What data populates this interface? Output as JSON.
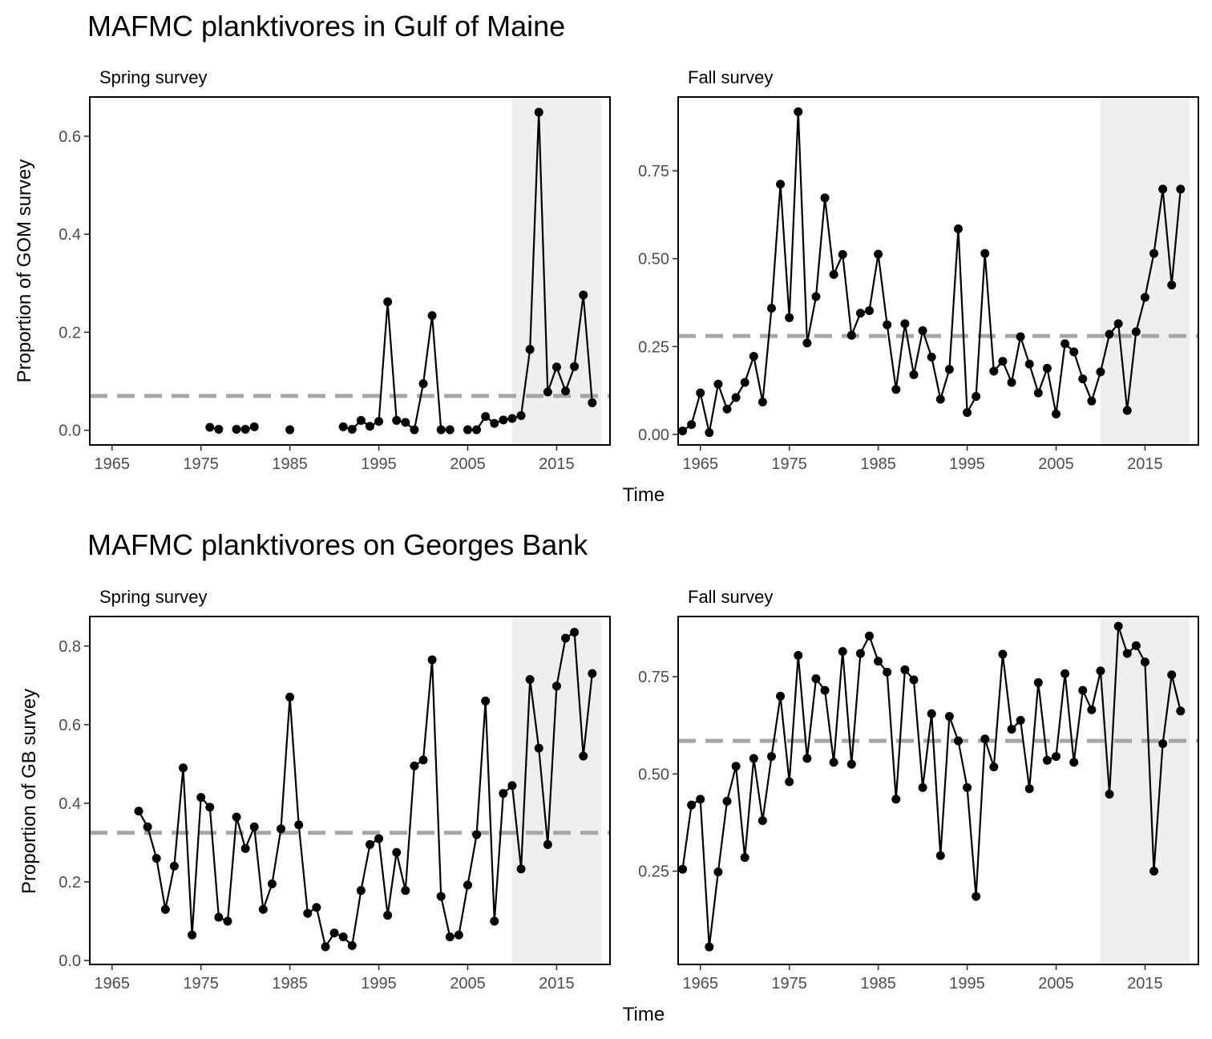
{
  "chart_data": [
    {
      "type": "line",
      "title": "MAFMC planktivores in Gulf of Maine",
      "xlabel": "Time",
      "ylabel": "Proportion of GOM survey",
      "panels": [
        {
          "strip": "Spring survey",
          "xlim": [
            1962.5,
            2021
          ],
          "ylim": [
            -0.03,
            0.68
          ],
          "xticks": [
            1965,
            1975,
            1985,
            1995,
            2005,
            2015
          ],
          "yticks": [
            0.0,
            0.2,
            0.4,
            0.6
          ],
          "ytick_labels": [
            "0.0",
            "0.2",
            "0.4",
            "0.6"
          ],
          "mean": 0.07,
          "shade": [
            2010,
            2020
          ],
          "x": [
            1976,
            1977,
            1979,
            1980,
            1981,
            1985,
            1991,
            1992,
            1993,
            1994,
            1995,
            1996,
            1997,
            1998,
            1999,
            2000,
            2001,
            2002,
            2003,
            2005,
            2006,
            2007,
            2008,
            2009,
            2010,
            2011,
            2012,
            2013,
            2014,
            2015,
            2016,
            2017,
            2018,
            2019
          ],
          "y": [
            0.006,
            0.002,
            0.002,
            0.002,
            0.007,
            0.001,
            0.007,
            0.002,
            0.02,
            0.008,
            0.018,
            0.262,
            0.02,
            0.016,
            0.001,
            0.095,
            0.234,
            0.001,
            0.001,
            0.001,
            0.001,
            0.028,
            0.014,
            0.021,
            0.024,
            0.03,
            0.165,
            0.649,
            0.078,
            0.129,
            0.08,
            0.13,
            0.276,
            0.056
          ]
        },
        {
          "strip": "Fall survey",
          "xlim": [
            1962.5,
            2021
          ],
          "ylim": [
            -0.03,
            0.96
          ],
          "xticks": [
            1965,
            1975,
            1985,
            1995,
            2005,
            2015
          ],
          "yticks": [
            0.0,
            0.25,
            0.5,
            0.75
          ],
          "ytick_labels": [
            "0.00",
            "0.25",
            "0.50",
            "0.75"
          ],
          "mean": 0.28,
          "shade": [
            2010,
            2020
          ],
          "x": [
            1963,
            1964,
            1965,
            1966,
            1967,
            1968,
            1969,
            1970,
            1971,
            1972,
            1973,
            1974,
            1975,
            1976,
            1977,
            1978,
            1979,
            1980,
            1981,
            1982,
            1983,
            1984,
            1985,
            1986,
            1987,
            1988,
            1989,
            1990,
            1991,
            1992,
            1993,
            1994,
            1995,
            1996,
            1997,
            1998,
            1999,
            2000,
            2001,
            2002,
            2003,
            2004,
            2005,
            2006,
            2007,
            2008,
            2009,
            2010,
            2011,
            2012,
            2013,
            2014,
            2015,
            2016,
            2017,
            2018,
            2019
          ],
          "y": [
            0.01,
            0.028,
            0.118,
            0.005,
            0.143,
            0.072,
            0.105,
            0.148,
            0.222,
            0.092,
            0.359,
            0.712,
            0.332,
            0.918,
            0.26,
            0.392,
            0.673,
            0.455,
            0.512,
            0.282,
            0.345,
            0.352,
            0.513,
            0.312,
            0.128,
            0.315,
            0.17,
            0.295,
            0.22,
            0.1,
            0.185,
            0.585,
            0.062,
            0.108,
            0.515,
            0.18,
            0.208,
            0.148,
            0.278,
            0.2,
            0.118,
            0.188,
            0.058,
            0.258,
            0.235,
            0.158,
            0.095,
            0.178,
            0.285,
            0.315,
            0.068,
            0.292,
            0.39,
            0.515,
            0.698,
            0.425,
            0.698
          ]
        }
      ]
    },
    {
      "type": "line",
      "title": "MAFMC planktivores on Georges Bank",
      "xlabel": "Time",
      "ylabel": "Proportion of GB survey",
      "panels": [
        {
          "strip": "Spring survey",
          "xlim": [
            1962.5,
            2021
          ],
          "ylim": [
            -0.01,
            0.875
          ],
          "xticks": [
            1965,
            1975,
            1985,
            1995,
            2005,
            2015
          ],
          "yticks": [
            0.0,
            0.2,
            0.4,
            0.6,
            0.8
          ],
          "ytick_labels": [
            "0.0",
            "0.2",
            "0.4",
            "0.6",
            "0.8"
          ],
          "mean": 0.325,
          "shade": [
            2010,
            2020
          ],
          "x": [
            1968,
            1969,
            1970,
            1971,
            1972,
            1973,
            1974,
            1975,
            1976,
            1977,
            1978,
            1979,
            1980,
            1981,
            1982,
            1983,
            1984,
            1985,
            1986,
            1987,
            1988,
            1989,
            1990,
            1991,
            1992,
            1993,
            1994,
            1995,
            1996,
            1997,
            1998,
            1999,
            2000,
            2001,
            2002,
            2003,
            2004,
            2005,
            2006,
            2007,
            2008,
            2009,
            2010,
            2011,
            2012,
            2013,
            2014,
            2015,
            2016,
            2017,
            2018,
            2019
          ],
          "y": [
            0.38,
            0.34,
            0.26,
            0.13,
            0.24,
            0.49,
            0.065,
            0.415,
            0.39,
            0.11,
            0.1,
            0.365,
            0.285,
            0.34,
            0.13,
            0.195,
            0.335,
            0.67,
            0.345,
            0.12,
            0.135,
            0.035,
            0.07,
            0.06,
            0.038,
            0.178,
            0.295,
            0.31,
            0.115,
            0.275,
            0.178,
            0.495,
            0.51,
            0.765,
            0.163,
            0.06,
            0.065,
            0.192,
            0.32,
            0.66,
            0.1,
            0.425,
            0.445,
            0.233,
            0.715,
            0.54,
            0.295,
            0.698,
            0.82,
            0.835,
            0.52,
            0.73
          ]
        },
        {
          "strip": "Fall survey",
          "xlim": [
            1962.5,
            2021
          ],
          "ylim": [
            0.01,
            0.905
          ],
          "xticks": [
            1965,
            1975,
            1985,
            1995,
            2005,
            2015
          ],
          "yticks": [
            0.25,
            0.5,
            0.75
          ],
          "ytick_labels": [
            "0.25",
            "0.50",
            "0.75"
          ],
          "mean": 0.585,
          "shade": [
            2010,
            2020
          ],
          "x": [
            1963,
            1964,
            1965,
            1966,
            1967,
            1968,
            1969,
            1970,
            1971,
            1972,
            1973,
            1974,
            1975,
            1976,
            1977,
            1978,
            1979,
            1980,
            1981,
            1982,
            1983,
            1984,
            1985,
            1986,
            1987,
            1988,
            1989,
            1990,
            1991,
            1992,
            1993,
            1994,
            1995,
            1996,
            1997,
            1998,
            1999,
            2000,
            2001,
            2002,
            2003,
            2004,
            2005,
            2006,
            2007,
            2008,
            2009,
            2010,
            2011,
            2012,
            2013,
            2014,
            2015,
            2016,
            2017,
            2018,
            2019
          ],
          "y": [
            0.255,
            0.42,
            0.435,
            0.055,
            0.248,
            0.43,
            0.52,
            0.285,
            0.54,
            0.38,
            0.545,
            0.7,
            0.48,
            0.805,
            0.54,
            0.745,
            0.715,
            0.53,
            0.815,
            0.525,
            0.81,
            0.855,
            0.79,
            0.762,
            0.435,
            0.768,
            0.742,
            0.465,
            0.655,
            0.29,
            0.648,
            0.585,
            0.465,
            0.185,
            0.59,
            0.518,
            0.808,
            0.615,
            0.638,
            0.462,
            0.735,
            0.535,
            0.545,
            0.758,
            0.53,
            0.715,
            0.665,
            0.765,
            0.448,
            0.88,
            0.81,
            0.83,
            0.788,
            0.25,
            0.578,
            0.755,
            0.662
          ]
        }
      ]
    }
  ]
}
